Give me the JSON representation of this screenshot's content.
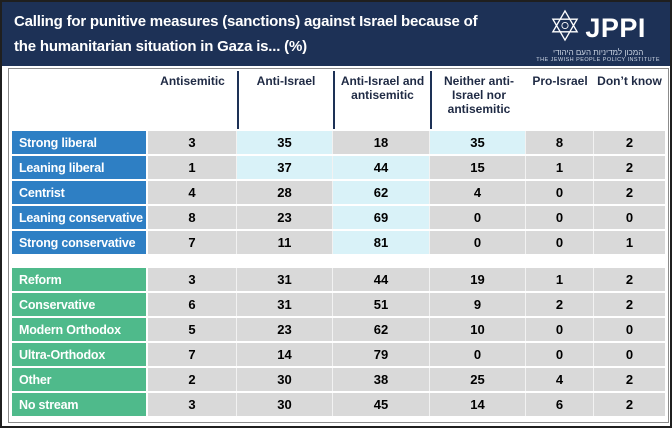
{
  "header": {
    "title_line1": "Calling for punitive measures (sanctions) against Israel because of",
    "title_line2": "the humanitarian situation in Gaza is... (%)",
    "background": "#1d3156",
    "logo": {
      "acronym": "JPPI",
      "hebrew": "המכון למדיניות העם היהודי",
      "english": "THE JEWISH PEOPLE POLICY INSTITUTE"
    }
  },
  "table": {
    "columns": [
      "Antisemitic",
      "Anti-Israel",
      "Anti-Israel and antisemitic",
      "Neither anti-Israel nor antisemitic",
      "Pro-Israel",
      "Don’t know"
    ],
    "colors": {
      "cell_bg": "#d9d9d9",
      "highlight_bg": "#d9f2f8",
      "header_text": "#1f2a44",
      "value_text": "#000000"
    },
    "groups": [
      {
        "label_color": "#2e7fc4",
        "rows": [
          {
            "label": "Strong liberal",
            "values": [
              3,
              35,
              18,
              35,
              8,
              2
            ],
            "highlighted": [
              1,
              3
            ]
          },
          {
            "label": "Leaning liberal",
            "values": [
              1,
              37,
              44,
              15,
              1,
              2
            ],
            "highlighted": [
              1,
              2
            ]
          },
          {
            "label": "Centrist",
            "values": [
              4,
              28,
              62,
              4,
              0,
              2
            ],
            "highlighted": [
              2
            ]
          },
          {
            "label": "Leaning conservative",
            "values": [
              8,
              23,
              69,
              0,
              0,
              0
            ],
            "highlighted": [
              2
            ]
          },
          {
            "label": "Strong conservative",
            "values": [
              7,
              11,
              81,
              0,
              0,
              1
            ],
            "highlighted": [
              2
            ]
          }
        ]
      },
      {
        "label_color": "#4fba8b",
        "rows": [
          {
            "label": "Reform",
            "values": [
              3,
              31,
              44,
              19,
              1,
              2
            ],
            "highlighted": []
          },
          {
            "label": "Conservative",
            "values": [
              6,
              31,
              51,
              9,
              2,
              2
            ],
            "highlighted": []
          },
          {
            "label": "Modern Orthodox",
            "values": [
              5,
              23,
              62,
              10,
              0,
              0
            ],
            "highlighted": []
          },
          {
            "label": "Ultra-Orthodox",
            "values": [
              7,
              14,
              79,
              0,
              0,
              0
            ],
            "highlighted": []
          },
          {
            "label": "Other",
            "values": [
              2,
              30,
              38,
              25,
              4,
              2
            ],
            "highlighted": []
          },
          {
            "label": "No stream",
            "values": [
              3,
              30,
              45,
              14,
              6,
              2
            ],
            "highlighted": []
          }
        ]
      }
    ]
  },
  "chart_data": {
    "type": "table",
    "title": "Calling for punitive measures (sanctions) against Israel because of the humanitarian situation in Gaza is... (%)",
    "columns": [
      "Antisemitic",
      "Anti-Israel",
      "Anti-Israel and antisemitic",
      "Neither anti-Israel nor antisemitic",
      "Pro-Israel",
      "Don’t know"
    ],
    "row_groups": [
      {
        "rows": [
          {
            "label": "Strong liberal",
            "values": [
              3,
              35,
              18,
              35,
              8,
              2
            ]
          },
          {
            "label": "Leaning liberal",
            "values": [
              1,
              37,
              44,
              15,
              1,
              2
            ]
          },
          {
            "label": "Centrist",
            "values": [
              4,
              28,
              62,
              4,
              0,
              2
            ]
          },
          {
            "label": "Leaning conservative",
            "values": [
              8,
              23,
              69,
              0,
              0,
              0
            ]
          },
          {
            "label": "Strong conservative",
            "values": [
              7,
              11,
              81,
              0,
              0,
              1
            ]
          }
        ]
      },
      {
        "rows": [
          {
            "label": "Reform",
            "values": [
              3,
              31,
              44,
              19,
              1,
              2
            ]
          },
          {
            "label": "Conservative",
            "values": [
              6,
              31,
              51,
              9,
              2,
              2
            ]
          },
          {
            "label": "Modern Orthodox",
            "values": [
              5,
              23,
              62,
              10,
              0,
              0
            ]
          },
          {
            "label": "Ultra-Orthodox",
            "values": [
              7,
              14,
              79,
              0,
              0,
              0
            ]
          },
          {
            "label": "Other",
            "values": [
              2,
              30,
              38,
              25,
              4,
              2
            ]
          },
          {
            "label": "No stream",
            "values": [
              3,
              30,
              45,
              14,
              6,
              2
            ]
          }
        ]
      }
    ],
    "layout_hints": {
      "highlighted_cells_color": "#d9f2f8",
      "highlight_meaning": "largest shares in the top (blue) group rows",
      "values_unit": "percent"
    }
  }
}
